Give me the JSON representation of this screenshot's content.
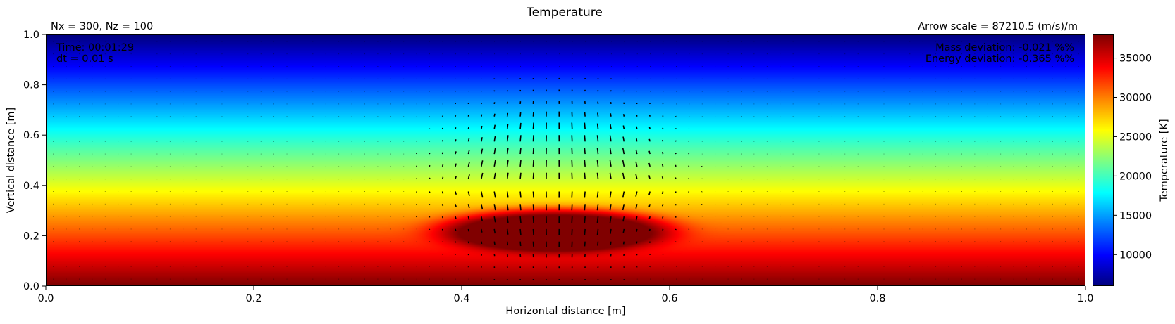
{
  "chart_data": {
    "type": "heatmap",
    "title": "Temperature",
    "subtitle_left": "Nx = 300, Nz = 100",
    "subtitle_right": "Arrow scale = 87210.5 (m/s)/m",
    "annotations_left": [
      "Time: 00:01:29",
      "dt = 0.01 s"
    ],
    "annotations_right": [
      "Mass deviation: -0.021 %%",
      "Energy deviation: -0.365 %%"
    ],
    "xlabel": "Horizontal distance [m]",
    "ylabel": "Vertical distance [m]",
    "xlim": [
      0.0,
      1.0
    ],
    "ylim": [
      0.0,
      1.0
    ],
    "xticks": [
      "0.0",
      "0.2",
      "0.4",
      "0.6",
      "0.8",
      "1.0"
    ],
    "yticks": [
      "0.0",
      "0.2",
      "0.4",
      "0.6",
      "0.8",
      "1.0"
    ],
    "colormap": "jet",
    "colorbar": {
      "label": "Temperature [K]",
      "range": [
        6000,
        38000
      ],
      "ticks": [
        "10000",
        "15000",
        "20000",
        "25000",
        "30000",
        "35000"
      ]
    },
    "field": {
      "background": "temperature decreases linearly from ~38000 K at z=0.0 to ~6000 K at z=1.0",
      "bubble": {
        "center_x": 0.49,
        "center_z": 0.22,
        "peak_temperature": 38000
      }
    },
    "quiver": {
      "region_x": [
        0.38,
        0.6
      ],
      "region_z": [
        0.1,
        0.8
      ]
    }
  }
}
